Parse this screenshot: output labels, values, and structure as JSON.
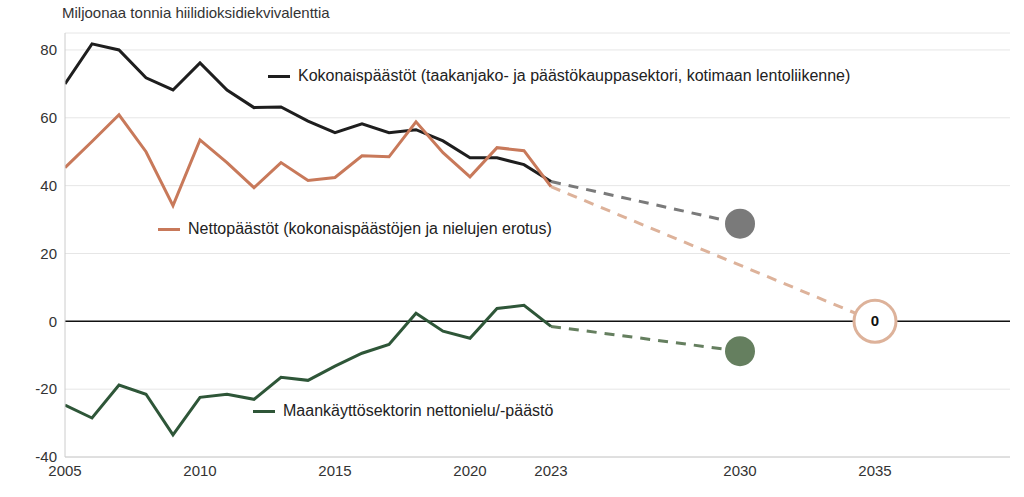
{
  "chart_data": {
    "type": "line",
    "title": "Miljoonaa tonnia hiilidioksidiekvivalenttia",
    "x": [
      2005,
      2006,
      2007,
      2008,
      2009,
      2010,
      2011,
      2012,
      2013,
      2014,
      2015,
      2016,
      2017,
      2018,
      2019,
      2020,
      2021,
      2022,
      2023
    ],
    "xlim": [
      2005,
      2040
    ],
    "xticks": [
      2005,
      2010,
      2015,
      2020,
      2023,
      2030,
      2035
    ],
    "ylim": [
      -40,
      85
    ],
    "yticks": [
      -40,
      -20,
      0,
      20,
      40,
      60,
      80
    ],
    "grid": true,
    "series": [
      {
        "name": "Kokonaispäästöt (taakanjako- ja päästökauppasektori, kotimaan lentoliikenne)",
        "color": "#1e1e1e",
        "line_style": "solid",
        "values": [
          70,
          81.8,
          80,
          71.8,
          68.2,
          76.2,
          68.2,
          63,
          63.2,
          59,
          55.6,
          58.2,
          55.6,
          56.5,
          53.2,
          48.2,
          48.2,
          46.2,
          41.2
        ],
        "target": {
          "x": 2030,
          "value": 28.8,
          "color": "#7a7a7a",
          "line_style": "dashed",
          "marker": "dot"
        }
      },
      {
        "name": "Nettopäästöt (kokonaispäästöjen ja nielujen erotus)",
        "color": "#c8795a",
        "line_style": "solid",
        "values": [
          45.3,
          53,
          60.9,
          50,
          34.1,
          53.5,
          46.8,
          39.4,
          46.8,
          41.5,
          42.4,
          48.8,
          48.5,
          58.8,
          49.7,
          42.6,
          51.2,
          50.3,
          39.7
        ],
        "target": {
          "x": 2035,
          "value": 0,
          "color": "#ddb29a",
          "line_style": "dashed",
          "marker": "ring",
          "data_labels": true
        }
      },
      {
        "name": "Maankäyttösektorin nettonielu/-päästö",
        "color": "#2e5638",
        "line_style": "solid",
        "values": [
          -24.7,
          -28.5,
          -18.8,
          -21.5,
          -33.5,
          -22.4,
          -21.5,
          -23,
          -16.5,
          -17.4,
          -13.2,
          -9.4,
          -6.8,
          2.4,
          -2.9,
          -5,
          3.8,
          4.7,
          -1.5
        ],
        "target": {
          "x": 2030,
          "value": -8.8,
          "color": "#657f5f",
          "line_style": "dashed",
          "marker": "dot"
        }
      }
    ]
  }
}
